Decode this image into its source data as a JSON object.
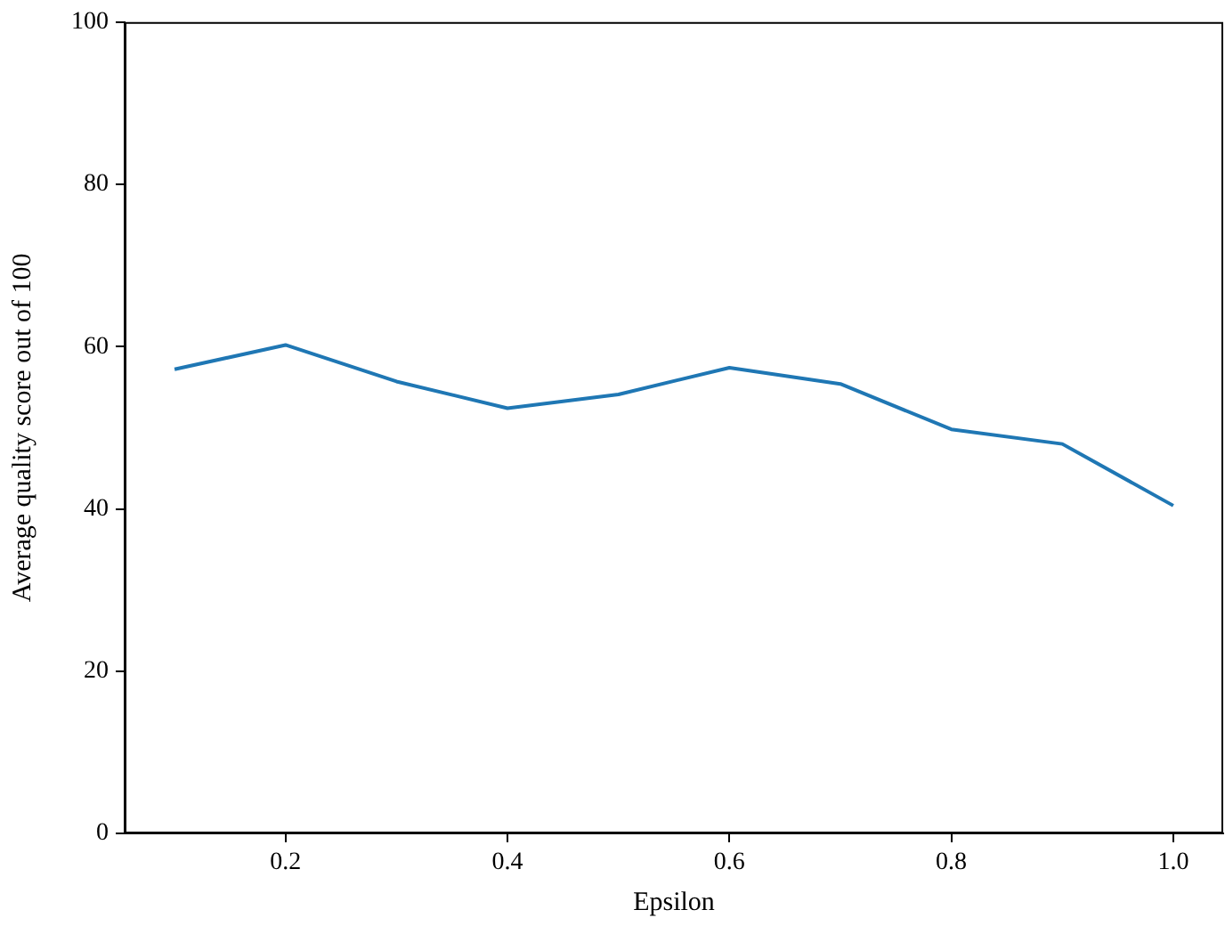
{
  "chart_data": {
    "type": "line",
    "xlabel": "Epsilon",
    "ylabel": "Average quality score out of 100",
    "x": [
      0.1,
      0.2,
      0.3,
      0.4,
      0.5,
      0.6,
      0.7,
      0.8,
      0.9,
      1.0
    ],
    "series": [
      {
        "color": "#1f77b4",
        "values": [
          57.2,
          60.2,
          55.7,
          52.4,
          54.1,
          57.4,
          55.4,
          49.8,
          48.0,
          40.4
        ]
      }
    ],
    "xlim": [
      0.055,
      1.045
    ],
    "xticks": [
      0.2,
      0.4,
      0.6,
      0.8,
      {
        "value": 1.0,
        "label": "1.0"
      }
    ],
    "ylim": [
      0,
      100
    ],
    "yticks": [
      0,
      20,
      40,
      60,
      80,
      100
    ],
    "grid": false,
    "legend": false,
    "marker": "none",
    "line_style": "solid"
  }
}
